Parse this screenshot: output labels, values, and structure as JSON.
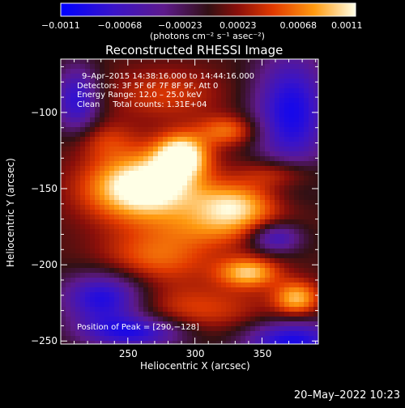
{
  "chart_data": {
    "type": "heatmap",
    "title": "Reconstructed RHESSI Image",
    "xlabel": "Heliocentric X (arcsec)",
    "ylabel": "Heliocentric Y (arcsec)",
    "xlim": [
      200,
      392
    ],
    "ylim": [
      -252,
      -65
    ],
    "xticks": [
      250,
      300,
      350
    ],
    "yticks": [
      -100,
      -150,
      -200,
      -250
    ],
    "xtick_labels": [
      "250",
      "300",
      "350"
    ],
    "ytick_labels": [
      "−100",
      "−150",
      "−200",
      "−250"
    ],
    "colorbar": {
      "range": [
        -0.0011,
        0.0011
      ],
      "ticks": [
        -0.0011,
        -0.00068,
        -0.00023,
        0.00023,
        0.00068,
        0.0011
      ],
      "tick_labels": [
        "−0.0011",
        "−0.00068",
        "−0.00023",
        "0.00023",
        "0.00068",
        "0.0011"
      ],
      "unit_label": "(photons cm⁻² s⁻¹ asec⁻²)"
    },
    "info_lines": [
      "9–Apr–2015 14:38:16.000 to 14:44:16.000",
      "Detectors: 3F 5F 6F 7F 8F 9F, Att 0",
      "Energy Range: 12.0 – 25.0 keV",
      "Clean     Total counts: 1.31E+04"
    ],
    "peak_label": "Position of Peak = [290,−128]",
    "peak": [
      290,
      -128
    ],
    "sources": [
      {
        "x": 290,
        "y": -128,
        "amp": 0.0011,
        "sx": 14,
        "sy": 10
      },
      {
        "x": 272,
        "y": -148,
        "amp": 0.00075,
        "sx": 26,
        "sy": 14
      },
      {
        "x": 250,
        "y": -150,
        "amp": 0.0007,
        "sx": 28,
        "sy": 16
      },
      {
        "x": 330,
        "y": -160,
        "amp": 0.0008,
        "sx": 22,
        "sy": 10
      },
      {
        "x": 318,
        "y": -175,
        "amp": 0.0005,
        "sx": 34,
        "sy": 10
      },
      {
        "x": 340,
        "y": -205,
        "amp": 0.00085,
        "sx": 16,
        "sy": 7
      },
      {
        "x": 376,
        "y": -222,
        "amp": 0.0008,
        "sx": 12,
        "sy": 8
      },
      {
        "x": 272,
        "y": -195,
        "amp": 0.00055,
        "sx": 30,
        "sy": 12
      },
      {
        "x": 325,
        "y": -112,
        "amp": 0.0006,
        "sx": 16,
        "sy": 7
      },
      {
        "x": 278,
        "y": -88,
        "amp": 0.0004,
        "sx": 30,
        "sy": 12
      },
      {
        "x": 232,
        "y": -118,
        "amp": 0.00035,
        "sx": 18,
        "sy": 9
      },
      {
        "x": 362,
        "y": -140,
        "amp": 0.0005,
        "sx": 20,
        "sy": 7
      },
      {
        "x": 300,
        "y": -230,
        "amp": 0.00045,
        "sx": 40,
        "sy": 12
      },
      {
        "x": 232,
        "y": -222,
        "amp": -0.001,
        "sx": 22,
        "sy": 12
      },
      {
        "x": 372,
        "y": -100,
        "amp": -0.001,
        "sx": 20,
        "sy": 28
      },
      {
        "x": 372,
        "y": -250,
        "amp": -0.001,
        "sx": 26,
        "sy": 10
      },
      {
        "x": 212,
        "y": -92,
        "amp": -0.00085,
        "sx": 12,
        "sy": 16
      },
      {
        "x": 360,
        "y": -182,
        "amp": -0.0008,
        "sx": 14,
        "sy": 7
      },
      {
        "x": 255,
        "y": -244,
        "amp": -0.00095,
        "sx": 28,
        "sy": 8
      }
    ]
  },
  "timestamp": "20–May–2022 10:23",
  "colors": {
    "background": "#000000",
    "text": "#ffffff"
  }
}
